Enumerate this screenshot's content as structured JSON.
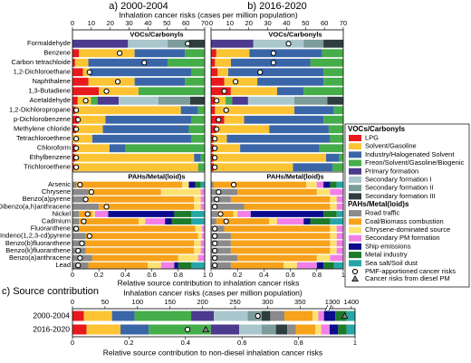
{
  "legend": {
    "groups": [
      {
        "title": "VOCs/Carbonyls",
        "items": [
          {
            "name": "LPG",
            "color": "#e8191c"
          },
          {
            "name": "Solvent/Gasoline",
            "color": "#fcc434"
          },
          {
            "name": "Industry/Halogenated Solvent",
            "color": "#3a66a8"
          },
          {
            "name": "Freon/Solvent/Gasoline/Biogenic",
            "color": "#45ad4a"
          },
          {
            "name": "Primary formation",
            "color": "#4c3a8e"
          },
          {
            "name": "Secondary formation I",
            "color": "#a9c6cc"
          },
          {
            "name": "Secondary formation II",
            "color": "#7c9b9b"
          },
          {
            "name": "Secondary formation III",
            "color": "#2e3d3d"
          }
        ]
      },
      {
        "title": "PAHs/Metal(loid)s",
        "items": [
          {
            "name": "Road traffic",
            "color": "#8a8a8a"
          },
          {
            "name": "Coal/Biomass combustion",
            "color": "#f7a21b"
          },
          {
            "name": "Chrysene-dominated source",
            "color": "#fde272"
          },
          {
            "name": "Secondary PM formation",
            "color": "#f27fe8"
          },
          {
            "name": "Ship emissions",
            "color": "#0c0c8c"
          },
          {
            "name": "Metal industry",
            "color": "#1d7a2a"
          },
          {
            "name": "Sea salt/Soil dust",
            "color": "#26a6a6"
          }
        ]
      }
    ],
    "markers": [
      {
        "name": "PMF-apportioned cancer risks",
        "shape": "circle"
      },
      {
        "name": "Cancer risks from diesel PM",
        "shape": "triangle"
      }
    ]
  },
  "chart_data": [
    {
      "type": "stacked_bar_h",
      "title": "a) 2000-2004",
      "x2label": "Inhalation cancer risks (cases per million population)",
      "xlabel": "Relative source contribution to inhalation cancer risks",
      "xlim": [
        0,
        1
      ],
      "xticks": [
        0,
        0.2,
        0.4,
        0.6,
        0.8,
        1
      ],
      "x2lim": [
        0,
        70
      ],
      "x2ticks": [
        0,
        10,
        20,
        30,
        40,
        50,
        60,
        70
      ],
      "groups": [
        {
          "name": "VOCs/Carbonyls",
          "categories": [
            "Formaldehyde",
            "Benzene",
            "Carbon tetrachloide",
            "1,2-Dichloroethane",
            "Naphthalene",
            "1,3-Butadiene",
            "Acetaldehyde",
            "1,2-Dichloropropane",
            "p-Dichlorobenzene",
            "Methylene chloride",
            "Tetrachloroethene",
            "Chloroform",
            "Ethylbenzene",
            "Trichloroethene"
          ],
          "series": [
            {
              "values": [
                0,
                0.05,
                0.02,
                0.08,
                0.12,
                0.2,
                0.04,
                0.02,
                0.05,
                0.03,
                0,
                0.03,
                0.02,
                0.01
              ]
            },
            {
              "values": [
                0,
                0.42,
                0.1,
                0.05,
                0.35,
                0.3,
                0.1,
                0.8,
                0.2,
                0.2,
                0.15,
                0.25,
                0.9,
                0.94
              ]
            },
            {
              "values": [
                0,
                0.38,
                0.6,
                0.77,
                0.38,
                0,
                0,
                0.13,
                0.65,
                0.65,
                0.75,
                0.12,
                0.05,
                0
              ]
            },
            {
              "values": [
                0,
                0.15,
                0.28,
                0.1,
                0.15,
                0.5,
                0.05,
                0.05,
                0.1,
                0.12,
                0.1,
                0.6,
                0.03,
                0.05
              ]
            },
            {
              "values": [
                0.42,
                0,
                0,
                0,
                0,
                0,
                0.16,
                0,
                0,
                0,
                0,
                0,
                0,
                0
              ]
            },
            {
              "values": [
                0.3,
                0,
                0,
                0,
                0,
                0,
                0.3,
                0,
                0,
                0,
                0,
                0,
                0,
                0
              ]
            },
            {
              "values": [
                0.16,
                0,
                0,
                0,
                0,
                0,
                0.24,
                0,
                0,
                0,
                0,
                0,
                0,
                0
              ]
            },
            {
              "values": [
                0.12,
                0,
                0,
                0,
                0,
                0,
                0.11,
                0,
                0,
                0,
                0,
                0,
                0,
                0
              ]
            }
          ],
          "risk": [
            61,
            25,
            38,
            9,
            24,
            18,
            7,
            2,
            3,
            2,
            2,
            2,
            2,
            2
          ]
        },
        {
          "name": "PAHs/Metal(loid)s",
          "categories": [
            "Arsenic",
            "Chrysene",
            "Benzo(a)pyrene",
            "Dibenzo(a,h)anthracene",
            "Nickel",
            "Cadmium",
            "Fluoranthene",
            "Indeno(1,2,3-cd)pyrene",
            "Benzo(b)fluoranthene",
            "Benzo(k)fluoranthene",
            "Benzo(a)anthracene",
            "Lead"
          ],
          "series": [
            {
              "values": [
                0.03,
                0.12,
                0.1,
                0.2,
                0.05,
                0.05,
                0.05,
                0.1,
                0.1,
                0.1,
                0.15,
                0.12
              ]
            },
            {
              "values": [
                0.8,
                0.55,
                0.82,
                0.72,
                0.1,
                0.45,
                0.88,
                0.85,
                0.82,
                0.82,
                0.65,
                0.45
              ]
            },
            {
              "values": [
                0.05,
                0.3,
                0.05,
                0.05,
                0.02,
                0.05,
                0.05,
                0.03,
                0.05,
                0.05,
                0.15,
                0.1
              ]
            },
            {
              "values": [
                0,
                0.03,
                0.03,
                0.03,
                0.1,
                0.15,
                0.02,
                0.02,
                0.03,
                0.03,
                0.05,
                0.1
              ]
            },
            {
              "values": [
                0.05,
                0,
                0,
                0,
                0.5,
                0.05,
                0,
                0,
                0,
                0,
                0,
                0.03
              ]
            },
            {
              "values": [
                0.04,
                0,
                0,
                0,
                0.13,
                0.15,
                0,
                0,
                0,
                0,
                0,
                0.1
              ]
            },
            {
              "values": [
                0.03,
                0,
                0,
                0,
                0.1,
                0.1,
                0,
                0,
                0,
                0,
                0,
                0.1
              ]
            }
          ],
          "risk": [
            4,
            10,
            7,
            18,
            8,
            6,
            2,
            9,
            5,
            3,
            4,
            3
          ]
        }
      ]
    },
    {
      "type": "stacked_bar_h",
      "title": "b) 2016-2020",
      "xlim": [
        0,
        1
      ],
      "xticks": [
        0,
        0.2,
        0.4,
        0.6,
        0.8,
        1
      ],
      "x2lim": [
        0,
        70
      ],
      "x2ticks": [
        0,
        10,
        20,
        30,
        40,
        50,
        60,
        70
      ],
      "groups": [
        {
          "name": "VOCs/Carbonyls",
          "series": [
            {
              "values": [
                0,
                0.04,
                0.03,
                0.05,
                0.1,
                0.15,
                0.03,
                0.03,
                0.1,
                0.04,
                0.02,
                0.02,
                0.02,
                0.02
              ]
            },
            {
              "values": [
                0,
                0.25,
                0.12,
                0.08,
                0.25,
                0.35,
                0.08,
                0.6,
                0.15,
                0.4,
                0.1,
                0.2,
                0.85,
                0.6
              ]
            },
            {
              "values": [
                0,
                0.55,
                0.6,
                0.72,
                0.5,
                0.2,
                0,
                0.3,
                0.6,
                0.45,
                0.78,
                0.6,
                0.1,
                0.3
              ]
            },
            {
              "values": [
                0,
                0.16,
                0.25,
                0.15,
                0.15,
                0.3,
                0.05,
                0.07,
                0.15,
                0.11,
                0.1,
                0.18,
                0.03,
                0.08
              ]
            },
            {
              "values": [
                0.32,
                0,
                0,
                0,
                0,
                0,
                0.12,
                0,
                0,
                0,
                0,
                0,
                0,
                0
              ]
            },
            {
              "values": [
                0.38,
                0,
                0,
                0,
                0,
                0,
                0.35,
                0,
                0,
                0,
                0,
                0,
                0,
                0
              ]
            },
            {
              "values": [
                0.15,
                0,
                0,
                0,
                0,
                0,
                0.25,
                0,
                0,
                0,
                0,
                0,
                0,
                0
              ]
            },
            {
              "values": [
                0.15,
                0,
                0,
                0,
                0,
                0,
                0.12,
                0,
                0,
                0,
                0,
                0,
                0,
                0
              ]
            }
          ],
          "risk": [
            41,
            33,
            33,
            26,
            13,
            7,
            3,
            8,
            4,
            3,
            2,
            2,
            2,
            2
          ]
        },
        {
          "name": "PAHs/Metal(loid)s",
          "series": [
            {
              "values": [
                0.02,
                0.2,
                0.15,
                0.25,
                0.05,
                0.04,
                0.1,
                0.15,
                0.15,
                0.15,
                0.2,
                0.15
              ]
            },
            {
              "values": [
                0.7,
                0.6,
                0.75,
                0.65,
                0.12,
                0.4,
                0.8,
                0.75,
                0.75,
                0.75,
                0.6,
                0.4
              ]
            },
            {
              "values": [
                0.08,
                0.1,
                0.05,
                0.05,
                0.03,
                0.06,
                0.05,
                0.05,
                0.05,
                0.05,
                0.1,
                0.1
              ]
            },
            {
              "values": [
                0.05,
                0.1,
                0.05,
                0.05,
                0.1,
                0.2,
                0.05,
                0.05,
                0.05,
                0.05,
                0.1,
                0.15
              ]
            },
            {
              "values": [
                0.05,
                0,
                0,
                0,
                0.55,
                0.05,
                0,
                0,
                0,
                0,
                0,
                0.05
              ]
            },
            {
              "values": [
                0.05,
                0,
                0,
                0,
                0.1,
                0.15,
                0,
                0,
                0,
                0,
                0,
                0.08
              ]
            },
            {
              "values": [
                0.05,
                0,
                0,
                0,
                0.05,
                0.1,
                0,
                0,
                0,
                0,
                0,
                0.07
              ]
            }
          ],
          "risk": [
            12,
            4,
            3,
            2,
            5,
            8,
            2,
            2,
            2,
            2,
            2,
            2
          ]
        }
      ]
    },
    {
      "type": "stacked_bar_h",
      "title": "c) Source contribution",
      "x2label": "Inhalation cancer risks (cases per million population)",
      "xlabel": "Relative source contribution to non-diesel inhalation cancer risks",
      "categories": [
        "2000-2004",
        "2016-2020"
      ],
      "xlim": [
        0,
        1
      ],
      "xticks": [
        0,
        0.2,
        0.4,
        0.6,
        0.8,
        1
      ],
      "x2lim": [
        0,
        1420
      ],
      "x2break": [
        390,
        1290
      ],
      "x2ticks": [
        0,
        50,
        100,
        150,
        200,
        250,
        300,
        350,
        1300,
        1400
      ],
      "series": [
        {
          "values": [
            0.04,
            0.05
          ]
        },
        {
          "values": [
            0.1,
            0.12
          ]
        },
        {
          "values": [
            0.08,
            0.1
          ]
        },
        {
          "values": [
            0.2,
            0.22
          ]
        },
        {
          "values": [
            0.08,
            0.1
          ]
        },
        {
          "values": [
            0.12,
            0.08
          ]
        },
        {
          "values": [
            0.05,
            0.05
          ]
        },
        {
          "values": [
            0.03,
            0.04
          ]
        },
        {
          "values": [
            0.05,
            0.03
          ]
        },
        {
          "values": [
            0.1,
            0.07
          ]
        },
        {
          "values": [
            0.02,
            0.02
          ]
        },
        {
          "values": [
            0.02,
            0.03
          ]
        },
        {
          "values": [
            0.04,
            0.03
          ]
        },
        {
          "values": [
            0.04,
            0.03
          ]
        },
        {
          "values": [
            0.03,
            0.03
          ]
        }
      ],
      "risk_circle": [
        285,
        177
      ],
      "risk_triangle": [
        1365,
        205
      ]
    }
  ]
}
